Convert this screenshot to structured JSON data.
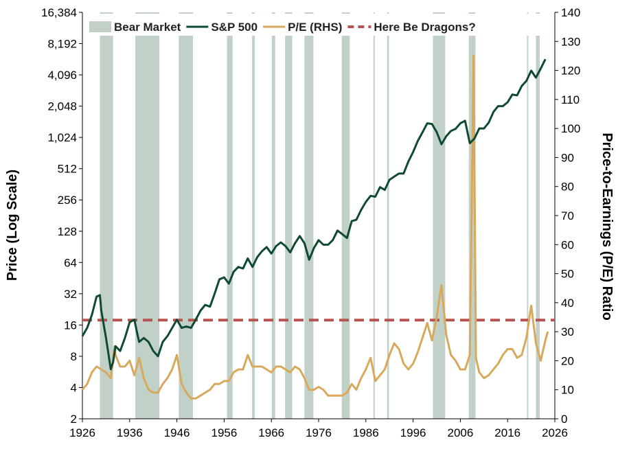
{
  "chart_data": {
    "type": "line",
    "title": "",
    "y_scale_left": "log2",
    "ylabel_left": "Price (Log Scale)",
    "ylabel_right": "Price-to-Earnings (P/E) Ratio",
    "xlim": [
      1926,
      2026
    ],
    "ylim_left": [
      2,
      16384
    ],
    "ylim_right": [
      0,
      140
    ],
    "x_ticks": [
      "1926",
      "1936",
      "1946",
      "1956",
      "1966",
      "1976",
      "1986",
      "1996",
      "2006",
      "2016",
      "2026"
    ],
    "y_left_ticks": [
      "16,384",
      "8,192",
      "4,096",
      "2,048",
      "1,024",
      "512",
      "256",
      "128",
      "64",
      "32",
      "16",
      "8",
      "4",
      "2"
    ],
    "y_right_ticks": [
      "140",
      "130",
      "120",
      "110",
      "100",
      "90",
      "80",
      "70",
      "60",
      "50",
      "40",
      "30",
      "20",
      "10",
      "0"
    ],
    "legend": {
      "position": "top",
      "items": [
        {
          "label": "Bear Market",
          "kind": "band"
        },
        {
          "label": "S&P 500",
          "kind": "line"
        },
        {
          "label": "P/E (RHS)",
          "kind": "line"
        },
        {
          "label": "Here Be Dragons?",
          "kind": "dashed"
        }
      ]
    },
    "colors": {
      "bear": "#c2d1c8",
      "sp500": "#0e4a32",
      "pe": "#d8a95c",
      "dragons": "#b5534f"
    },
    "bear_markets": [
      [
        1929.7,
        1932.5
      ],
      [
        1937.2,
        1942.3
      ],
      [
        1946.4,
        1949.4
      ],
      [
        1956.6,
        1957.8
      ],
      [
        1961.9,
        1962.5
      ],
      [
        1966.1,
        1966.8
      ],
      [
        1968.9,
        1970.4
      ],
      [
        1973.0,
        1974.9
      ],
      [
        1980.9,
        1982.6
      ],
      [
        1987.6,
        1987.9
      ],
      [
        1990.5,
        1990.9
      ],
      [
        2000.2,
        2002.8
      ],
      [
        2007.8,
        2009.2
      ],
      [
        2020.1,
        2020.3
      ],
      [
        2022.0,
        2022.8
      ]
    ],
    "dragons_level": 34,
    "series": [
      {
        "name": "S&P 500",
        "axis": "left",
        "points": [
          [
            1926,
            12.5
          ],
          [
            1927,
            15
          ],
          [
            1928,
            20
          ],
          [
            1929,
            30
          ],
          [
            1929.7,
            31
          ],
          [
            1930,
            22
          ],
          [
            1931,
            12
          ],
          [
            1932,
            6
          ],
          [
            1932.5,
            7
          ],
          [
            1933,
            10
          ],
          [
            1934,
            9
          ],
          [
            1935,
            12
          ],
          [
            1936,
            17
          ],
          [
            1937,
            18
          ],
          [
            1937.5,
            14
          ],
          [
            1938,
            11
          ],
          [
            1939,
            12
          ],
          [
            1940,
            11
          ],
          [
            1941,
            9
          ],
          [
            1942,
            8
          ],
          [
            1943,
            11
          ],
          [
            1944,
            12.5
          ],
          [
            1945,
            15
          ],
          [
            1946,
            18
          ],
          [
            1947,
            15
          ],
          [
            1948,
            15.5
          ],
          [
            1949,
            15
          ],
          [
            1950,
            18
          ],
          [
            1951,
            22
          ],
          [
            1952,
            25
          ],
          [
            1953,
            24
          ],
          [
            1954,
            32
          ],
          [
            1955,
            44
          ],
          [
            1956,
            46
          ],
          [
            1957,
            40
          ],
          [
            1958,
            52
          ],
          [
            1959,
            58
          ],
          [
            1960,
            56
          ],
          [
            1961,
            70
          ],
          [
            1962,
            58
          ],
          [
            1963,
            72
          ],
          [
            1964,
            82
          ],
          [
            1965,
            90
          ],
          [
            1966,
            78
          ],
          [
            1967,
            92
          ],
          [
            1968,
            100
          ],
          [
            1969,
            92
          ],
          [
            1970,
            80
          ],
          [
            1971,
            98
          ],
          [
            1972,
            115
          ],
          [
            1973,
            98
          ],
          [
            1974,
            68
          ],
          [
            1975,
            88
          ],
          [
            1976,
            105
          ],
          [
            1977,
            95
          ],
          [
            1978,
            95
          ],
          [
            1979,
            105
          ],
          [
            1980,
            130
          ],
          [
            1981,
            120
          ],
          [
            1982,
            110
          ],
          [
            1983,
            160
          ],
          [
            1984,
            165
          ],
          [
            1985,
            205
          ],
          [
            1986,
            245
          ],
          [
            1987,
            280
          ],
          [
            1988,
            275
          ],
          [
            1989,
            340
          ],
          [
            1990,
            320
          ],
          [
            1991,
            400
          ],
          [
            1992,
            430
          ],
          [
            1993,
            460
          ],
          [
            1994,
            460
          ],
          [
            1995,
            600
          ],
          [
            1996,
            740
          ],
          [
            1997,
            950
          ],
          [
            1998,
            1150
          ],
          [
            1999,
            1400
          ],
          [
            2000,
            1380
          ],
          [
            2001,
            1150
          ],
          [
            2002,
            880
          ],
          [
            2003,
            1050
          ],
          [
            2004,
            1180
          ],
          [
            2005,
            1240
          ],
          [
            2006,
            1400
          ],
          [
            2007,
            1480
          ],
          [
            2008,
            900
          ],
          [
            2009,
            1000
          ],
          [
            2010,
            1250
          ],
          [
            2011,
            1250
          ],
          [
            2012,
            1420
          ],
          [
            2013,
            1800
          ],
          [
            2014,
            2050
          ],
          [
            2015,
            2050
          ],
          [
            2016,
            2230
          ],
          [
            2017,
            2650
          ],
          [
            2018,
            2600
          ],
          [
            2019,
            3200
          ],
          [
            2020,
            3600
          ],
          [
            2021,
            4500
          ],
          [
            2022,
            3850
          ],
          [
            2023,
            4700
          ],
          [
            2024,
            5800
          ]
        ]
      },
      {
        "name": "P/E (RHS)",
        "axis": "right",
        "points": [
          [
            1926,
            10
          ],
          [
            1927,
            12
          ],
          [
            1928,
            16
          ],
          [
            1929,
            18
          ],
          [
            1930,
            17
          ],
          [
            1931,
            16
          ],
          [
            1932,
            14
          ],
          [
            1932.8,
            25
          ],
          [
            1933,
            22
          ],
          [
            1934,
            18
          ],
          [
            1935,
            18
          ],
          [
            1936,
            20
          ],
          [
            1937,
            15
          ],
          [
            1938,
            21
          ],
          [
            1939,
            14
          ],
          [
            1940,
            10
          ],
          [
            1941,
            9
          ],
          [
            1942,
            9
          ],
          [
            1943,
            12
          ],
          [
            1944,
            14
          ],
          [
            1945,
            17
          ],
          [
            1946,
            22
          ],
          [
            1947,
            12
          ],
          [
            1948,
            9
          ],
          [
            1949,
            7
          ],
          [
            1950,
            7
          ],
          [
            1951,
            8
          ],
          [
            1952,
            9
          ],
          [
            1953,
            10
          ],
          [
            1954,
            12
          ],
          [
            1955,
            12
          ],
          [
            1956,
            13
          ],
          [
            1957,
            13
          ],
          [
            1958,
            16
          ],
          [
            1959,
            17
          ],
          [
            1960,
            17
          ],
          [
            1961,
            22
          ],
          [
            1962,
            18
          ],
          [
            1963,
            18
          ],
          [
            1964,
            18
          ],
          [
            1965,
            17
          ],
          [
            1966,
            16
          ],
          [
            1967,
            18
          ],
          [
            1968,
            18
          ],
          [
            1969,
            17
          ],
          [
            1970,
            16
          ],
          [
            1971,
            18
          ],
          [
            1972,
            17
          ],
          [
            1973,
            14
          ],
          [
            1974,
            10
          ],
          [
            1975,
            10
          ],
          [
            1976,
            11
          ],
          [
            1977,
            10
          ],
          [
            1978,
            8
          ],
          [
            1979,
            8
          ],
          [
            1980,
            8
          ],
          [
            1981,
            8
          ],
          [
            1982,
            9
          ],
          [
            1983,
            12
          ],
          [
            1984,
            10
          ],
          [
            1985,
            14
          ],
          [
            1986,
            17
          ],
          [
            1987,
            21
          ],
          [
            1988,
            13
          ],
          [
            1989,
            15
          ],
          [
            1990,
            17
          ],
          [
            1991,
            22
          ],
          [
            1992,
            26
          ],
          [
            1993,
            24
          ],
          [
            1994,
            19
          ],
          [
            1995,
            17
          ],
          [
            1996,
            19
          ],
          [
            1997,
            23
          ],
          [
            1998,
            28
          ],
          [
            1999,
            33
          ],
          [
            2000,
            27
          ],
          [
            2001,
            35
          ],
          [
            2002,
            46
          ],
          [
            2003,
            29
          ],
          [
            2004,
            22
          ],
          [
            2005,
            20
          ],
          [
            2006,
            17
          ],
          [
            2007,
            17
          ],
          [
            2008,
            22
          ],
          [
            2008.8,
            125
          ],
          [
            2009.3,
            21
          ],
          [
            2010,
            16
          ],
          [
            2011,
            14
          ],
          [
            2012,
            15
          ],
          [
            2013,
            17
          ],
          [
            2014,
            19
          ],
          [
            2015,
            22
          ],
          [
            2016,
            24
          ],
          [
            2017,
            24
          ],
          [
            2018,
            21
          ],
          [
            2019,
            22
          ],
          [
            2020,
            28
          ],
          [
            2021,
            39
          ],
          [
            2022,
            26
          ],
          [
            2023,
            20
          ],
          [
            2024,
            27
          ],
          [
            2024.5,
            30
          ]
        ]
      }
    ]
  }
}
